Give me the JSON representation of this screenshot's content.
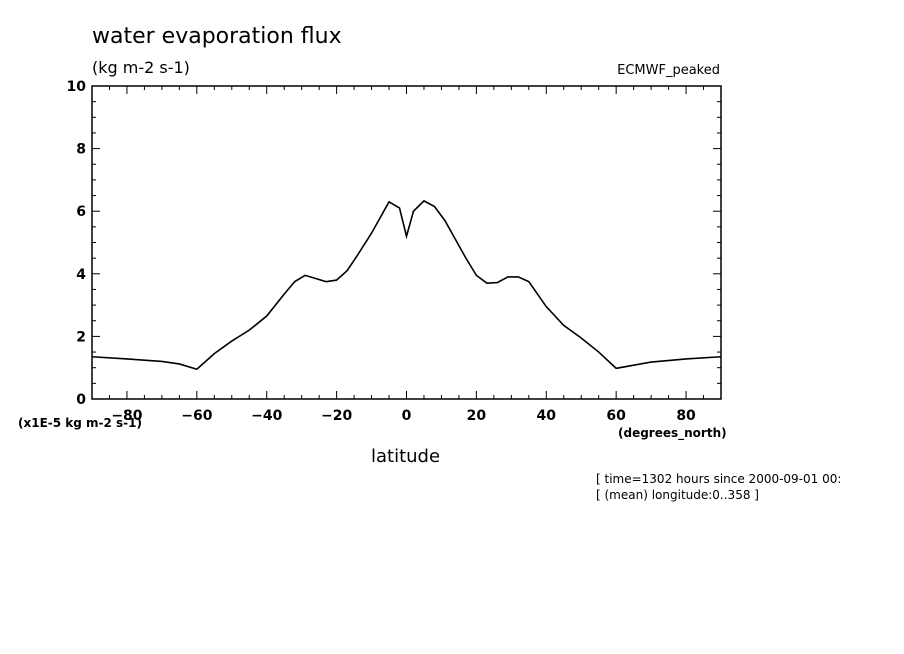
{
  "chart_data": {
    "type": "line",
    "title": "water evaporation flux",
    "units_label": "(kg m-2 s-1)",
    "dataset_label": "ECMWF_peaked",
    "scale_label": "(x1E-5 kg m-2 s-1)",
    "xlabel": "latitude",
    "x_units_label": "(degrees_north)",
    "xlim": [
      -90,
      90
    ],
    "ylim": [
      0,
      10
    ],
    "x_ticks": [
      -80,
      -60,
      -40,
      -20,
      0,
      20,
      40,
      60,
      80
    ],
    "y_ticks": [
      0,
      2,
      4,
      6,
      8,
      10
    ],
    "grid": false,
    "series": [
      {
        "x": [
          -90,
          -80,
          -70,
          -65,
          -60,
          -55,
          -50,
          -45,
          -40,
          -35,
          -32,
          -29,
          -26,
          -23,
          -20,
          -17,
          -14,
          -10,
          -5,
          -2,
          0,
          2,
          5,
          8,
          11,
          14,
          17,
          20,
          23,
          26,
          29,
          32,
          35,
          40,
          45,
          50,
          55,
          60,
          65,
          70,
          80,
          90
        ],
        "y": [
          1.35,
          1.28,
          1.2,
          1.12,
          0.95,
          1.45,
          1.85,
          2.2,
          2.65,
          3.35,
          3.75,
          3.95,
          3.85,
          3.75,
          3.8,
          4.1,
          4.6,
          5.3,
          6.3,
          6.1,
          5.2,
          6.0,
          6.33,
          6.15,
          5.7,
          5.1,
          4.5,
          3.95,
          3.7,
          3.72,
          3.9,
          3.9,
          3.75,
          2.95,
          2.35,
          1.95,
          1.5,
          0.98,
          1.08,
          1.18,
          1.28,
          1.35
        ]
      }
    ],
    "footnotes": [
      "[ time=1302 hours since 2000-09-01 00:",
      "[ (mean) longitude:0..358 ]"
    ]
  }
}
